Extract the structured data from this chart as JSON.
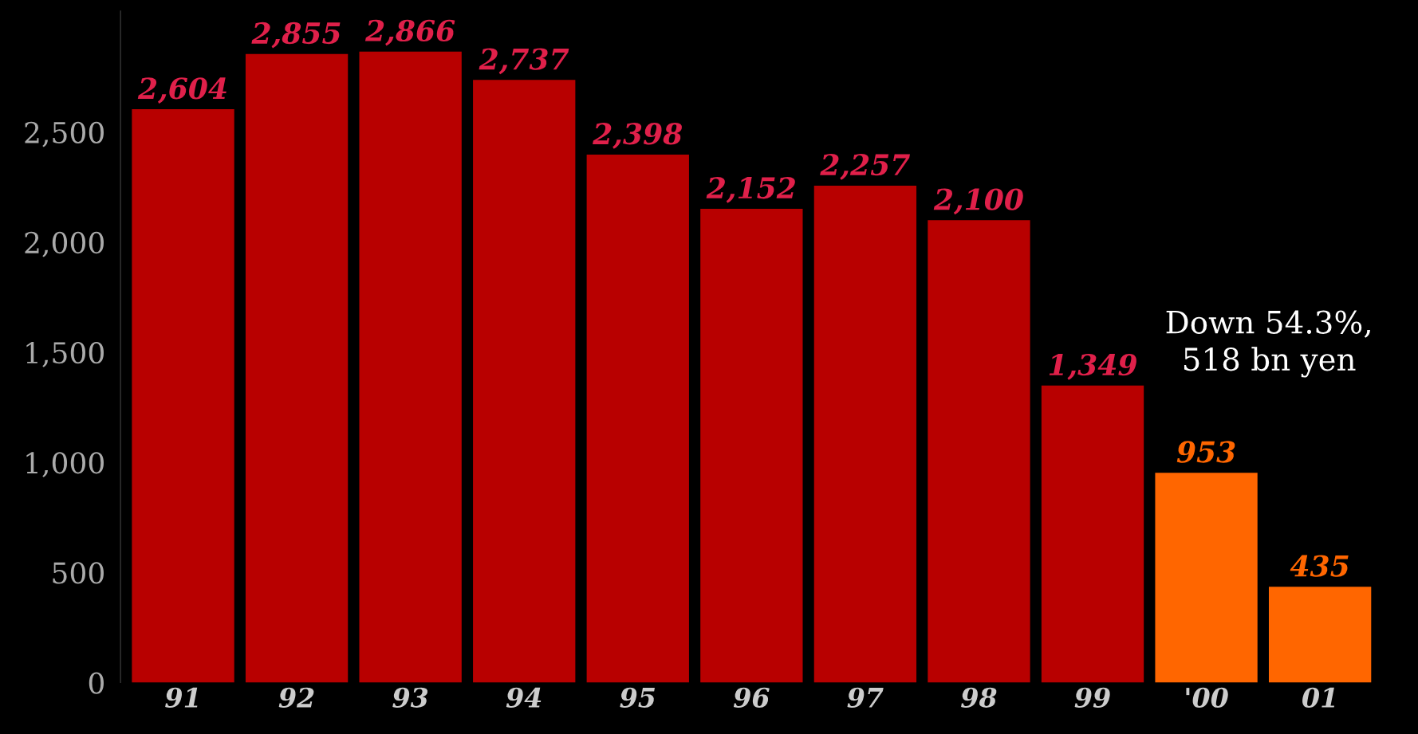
{
  "chart_data": {
    "type": "bar",
    "categories": [
      "91",
      "92",
      "93",
      "94",
      "95",
      "96",
      "97",
      "98",
      "99",
      "'00",
      "01"
    ],
    "values": [
      2604,
      2855,
      2866,
      2737,
      2398,
      2152,
      2257,
      2100,
      1349,
      953,
      435
    ],
    "colors": [
      "#b80000",
      "#b80000",
      "#b80000",
      "#b80000",
      "#b80000",
      "#b80000",
      "#b80000",
      "#b80000",
      "#b80000",
      "#ff6600",
      "#ff6600"
    ],
    "value_labels": [
      "2,604",
      "2,855",
      "2,866",
      "2,737",
      "2,398",
      "2,152",
      "2,257",
      "2,100",
      "1,349",
      "953",
      "435"
    ],
    "ylim": [
      0,
      3050
    ],
    "yticks": [
      0,
      {
        "value": 500,
        "label": "500"
      },
      {
        "value": 1000,
        "label": "1,000"
      },
      {
        "value": 1500,
        "label": "1,500"
      },
      {
        "value": 2000,
        "label": "2,000"
      },
      {
        "value": 2500,
        "label": "2,500"
      }
    ],
    "grid": false,
    "annotations": [
      "Down 54.3%,\n518 bn yen"
    ]
  }
}
